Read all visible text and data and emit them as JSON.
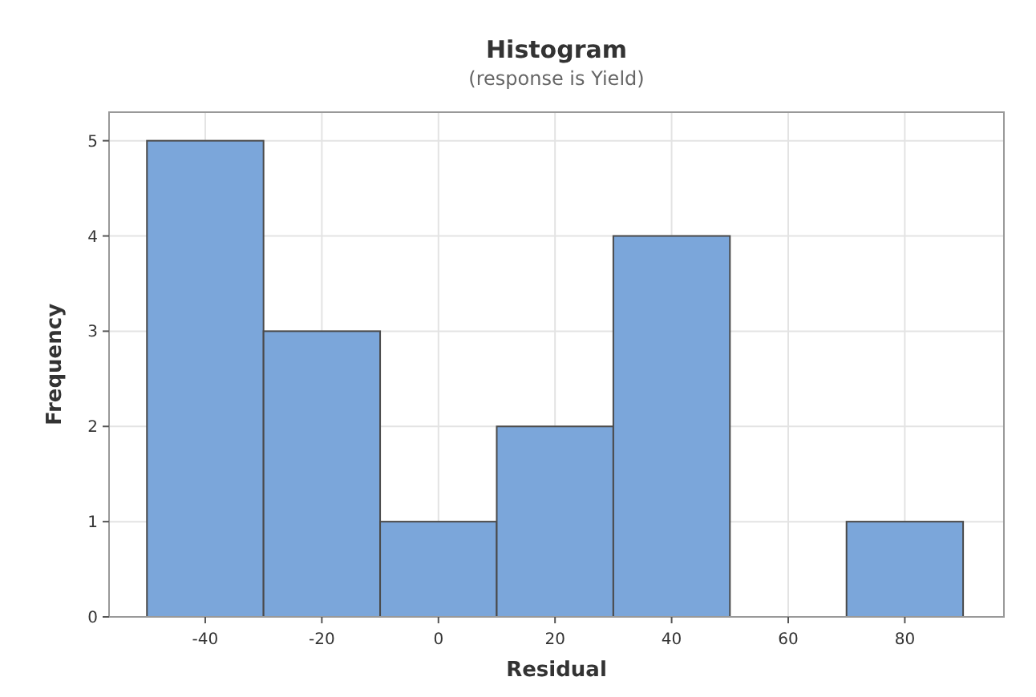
{
  "chart_data": {
    "type": "histogram",
    "title": "Histogram",
    "subtitle": "(response is Yield)",
    "xlabel": "Residual",
    "ylabel": "Frequency",
    "bins": [
      -50,
      -30,
      -10,
      10,
      30,
      50,
      70,
      90
    ],
    "values": [
      5,
      3,
      1,
      2,
      4,
      0,
      1
    ],
    "color": "#7ba6da",
    "xlim": [
      -56.5,
      97
    ],
    "xticks": [
      -40,
      -20,
      0,
      20,
      40,
      60,
      80
    ],
    "ylim": [
      0,
      5.3
    ],
    "yticks": [
      0,
      1,
      2,
      3,
      4,
      5
    ],
    "grid": true
  }
}
